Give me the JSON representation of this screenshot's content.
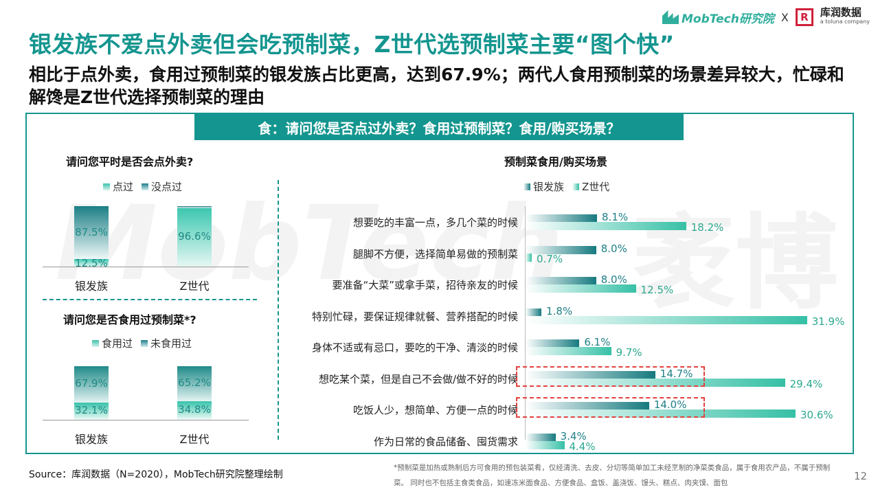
{
  "title": "银发族不爱点外卖但会吃预制菜，Z世代选预制菜主要“图个快”",
  "subtitle": "相比于点外卖，食用过预制菜的银发族占比更高，达到67.9%；两代人食用预制菜的场景差异较大，忙碌和解馋是Z世代选择预制菜的理由",
  "logos": {
    "mobtech": "MobTech研究院",
    "separator": "X",
    "runkun_mark": "R",
    "runkun_name": "库润数据",
    "runkun_sub": "a toluna company"
  },
  "banner": "食：请问您是否点过外卖？食用过预制菜？食用/购买场景？",
  "watermark": {
    "left": "MobTech",
    "right": "袤博"
  },
  "colors": {
    "accent": "#14958f",
    "dark_series": "#167a7f",
    "teal_series": "#36c0a6",
    "highlight": "#e3413e"
  },
  "chart_data": [
    {
      "type": "bar",
      "stacked": true,
      "title": "请问您平时是否会点外卖?",
      "categories": [
        "银发族",
        "Z世代"
      ],
      "series": [
        {
          "name": "点过",
          "values": [
            12.5,
            96.6
          ],
          "labels": [
            "12.5%",
            "96.6%"
          ]
        },
        {
          "name": "没点过",
          "values": [
            87.5,
            3.4
          ],
          "labels": [
            "87.5%",
            ""
          ]
        }
      ],
      "ylim": [
        0,
        100
      ]
    },
    {
      "type": "bar",
      "stacked": true,
      "title": "请问您是否食用过预制菜*?",
      "categories": [
        "银发族",
        "Z世代"
      ],
      "series": [
        {
          "name": "食用过",
          "values": [
            67.9,
            65.2
          ],
          "labels": [
            "67.9%",
            "65.2%"
          ]
        },
        {
          "name": "未食用过",
          "values": [
            32.1,
            34.8
          ],
          "labels": [
            "32.1%",
            "34.8%"
          ]
        }
      ],
      "ylim": [
        0,
        100
      ]
    },
    {
      "type": "bar",
      "orientation": "horizontal",
      "title": "预制菜食用/购买场景",
      "categories": [
        "想要吃的丰富一点，多几个菜的时候",
        "腿脚不方便，选择简单易做的预制菜",
        "要准备“大菜”或拿手菜，招待亲友的时候",
        "特别忙碌，要保证规律就餐、营养搭配的时候",
        "身体不适或有忌口，要吃的干净、清淡的时候",
        "想吃某个菜，但是自己不会做/做不好的时候",
        "吃饭人少，想简单、方便一点的时候",
        "作为日常的食品储备、囤货需求"
      ],
      "series": [
        {
          "name": "银发族",
          "values": [
            8.1,
            8.0,
            8.0,
            1.8,
            6.1,
            14.7,
            14.0,
            3.4
          ],
          "labels": [
            "8.1%",
            "8.0%",
            "8.0%",
            "1.8%",
            "6.1%",
            "14.7%",
            "14.0%",
            "3.4%"
          ]
        },
        {
          "name": "Z世代",
          "values": [
            18.2,
            0.7,
            12.5,
            31.9,
            9.7,
            29.4,
            30.6,
            4.4
          ],
          "labels": [
            "18.2%",
            "0.7%",
            "12.5%",
            "31.9%",
            "9.7%",
            "29.4%",
            "30.6%",
            "4.4%"
          ]
        }
      ],
      "highlighted": [
        5,
        6
      ],
      "xlim": [
        0,
        32
      ]
    }
  ],
  "source": "Source：库润数据（N=2020），MobTech研究院整理绘制",
  "note": "*预制菜是加热或熟制后方可食用的预包装菜肴，仅经清洗、去皮、分切等简单加工未经烹制的净菜类食品，属于食用农产品，不属于预制菜。 同时也不包括主食类食品，如速冻米面食品、方便食品、盒饭、盖浇饭、馒头、糕点、肉夹馍、面包",
  "page_number": "12"
}
